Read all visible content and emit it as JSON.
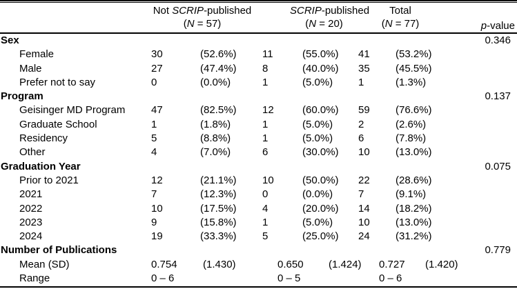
{
  "header": {
    "groups": [
      {
        "line1": [
          {
            "text": "Not ",
            "italic": false
          },
          {
            "text": "SCRIP",
            "italic": true
          },
          {
            "text": "-published",
            "italic": false
          }
        ],
        "line2": [
          {
            "text": "(",
            "italic": false
          },
          {
            "text": "N",
            "italic": true
          },
          {
            "text": " = 57)",
            "italic": false
          }
        ]
      },
      {
        "line1": [
          {
            "text": "SCRIP",
            "italic": true
          },
          {
            "text": "-published",
            "italic": false
          }
        ],
        "line2": [
          {
            "text": "(",
            "italic": false
          },
          {
            "text": "N",
            "italic": true
          },
          {
            "text": " = 20)",
            "italic": false
          }
        ]
      },
      {
        "line1": [
          {
            "text": "Total",
            "italic": false
          }
        ],
        "line2": [
          {
            "text": "(",
            "italic": false
          },
          {
            "text": "N",
            "italic": true
          },
          {
            "text": " = 77)",
            "italic": false
          }
        ]
      },
      {
        "line1": [],
        "line2": [
          {
            "text": "p",
            "italic": true
          },
          {
            "text": "-value",
            "italic": false
          }
        ]
      }
    ]
  },
  "sections": [
    {
      "label": "Sex",
      "p_value": "0.346",
      "rows": [
        {
          "label": "Female",
          "cells": [
            "30",
            "(52.6%)",
            "11",
            "(55.0%)",
            "41",
            "(53.2%)"
          ]
        },
        {
          "label": "Male",
          "cells": [
            "27",
            "(47.4%)",
            "8",
            "(40.0%)",
            "35",
            "(45.5%)"
          ]
        },
        {
          "label": "Prefer not to say",
          "cells": [
            "0",
            "(0.0%)",
            "1",
            "(5.0%)",
            "1",
            "(1.3%)"
          ]
        }
      ]
    },
    {
      "label": "Program",
      "p_value": "0.137",
      "rows": [
        {
          "label": "Geisinger MD Program",
          "cells": [
            "47",
            "(82.5%)",
            "12",
            "(60.0%)",
            "59",
            "(76.6%)"
          ]
        },
        {
          "label": "Graduate School",
          "cells": [
            "1",
            "(1.8%)",
            "1",
            "(5.0%)",
            "2",
            "(2.6%)"
          ]
        },
        {
          "label": "Residency",
          "cells": [
            "5",
            "(8.8%)",
            "1",
            "(5.0%)",
            "6",
            "(7.8%)"
          ]
        },
        {
          "label": "Other",
          "cells": [
            "4",
            "(7.0%)",
            "6",
            "(30.0%)",
            "10",
            "(13.0%)"
          ]
        }
      ]
    },
    {
      "label": "Graduation Year",
      "p_value": "0.075",
      "rows": [
        {
          "label": "Prior to 2021",
          "cells": [
            "12",
            "(21.1%)",
            "10",
            "(50.0%)",
            "22",
            "(28.6%)"
          ]
        },
        {
          "label": "2021",
          "cells": [
            "7",
            "(12.3%)",
            "0",
            "(0.0%)",
            "7",
            "(9.1%)"
          ]
        },
        {
          "label": "2022",
          "cells": [
            "10",
            "(17.5%)",
            "4",
            "(20.0%)",
            "14",
            "(18.2%)"
          ]
        },
        {
          "label": "2023",
          "cells": [
            "9",
            "(15.8%)",
            "1",
            "(5.0%)",
            "10",
            "(13.0%)"
          ]
        },
        {
          "label": "2024",
          "cells": [
            "19",
            "(33.3%)",
            "5",
            "(25.0%)",
            "24",
            "(31.2%)"
          ]
        }
      ]
    },
    {
      "label": "Number of Publications",
      "p_value": "0.779",
      "variant": "pubs",
      "rows": [
        {
          "label": "Mean (SD)",
          "cells": [
            "0.754",
            "(1.430)",
            "0.650",
            "(1.424)",
            "0.727",
            "(1.420)"
          ],
          "variant": "pubs"
        },
        {
          "label": "Range",
          "cells": [
            "0 – 6",
            "",
            "0 – 5",
            "",
            "0 – 6",
            ""
          ],
          "variant": "pubs"
        }
      ]
    }
  ]
}
